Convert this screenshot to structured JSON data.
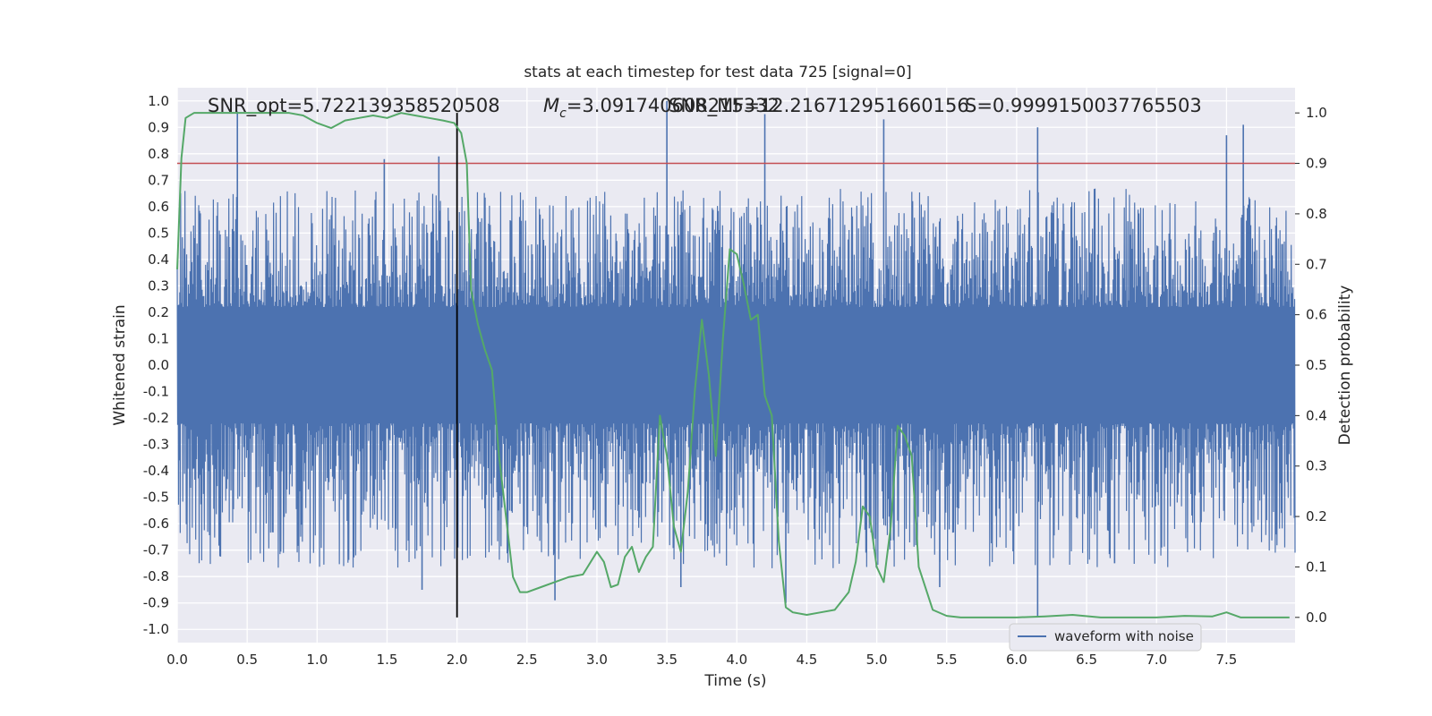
{
  "chart_data": {
    "type": "line",
    "title": "stats at each timestep for test data 725 [signal=0]",
    "xlabel": "Time (s)",
    "ylabel_left": "Whitened strain",
    "ylabel_right": "Detection probability",
    "xlim": [
      0.0,
      7.99
    ],
    "ylim_left": [
      -1.05,
      1.05
    ],
    "ylim_right": [
      -0.05,
      1.05
    ],
    "x_ticks": [
      "0.0",
      "0.5",
      "1.0",
      "1.5",
      "2.0",
      "2.5",
      "3.0",
      "3.5",
      "4.0",
      "4.5",
      "5.0",
      "5.5",
      "6.0",
      "6.5",
      "7.0",
      "7.5"
    ],
    "y_ticks_left": [
      "1.0",
      "0.9",
      "0.8",
      "0.7",
      "0.6",
      "0.5",
      "0.4",
      "0.3",
      "0.2",
      "0.1",
      "0.0",
      "-0.1",
      "-0.2",
      "-0.3",
      "-0.4",
      "-0.5",
      "-0.6",
      "-0.7",
      "-0.8",
      "-0.9",
      "-1.0"
    ],
    "y_ticks_right": [
      "1.0",
      "0.9",
      "0.8",
      "0.7",
      "0.6",
      "0.5",
      "0.4",
      "0.3",
      "0.2",
      "0.1",
      "0.0"
    ],
    "grid": true,
    "legend_location": "lower-right",
    "annotations": [
      "SNR_opt=5.722139358520508",
      "=3.091740608215332",
      "SNR_MF=12.216712951660156",
      "S=0.9999150037765503"
    ],
    "annotation_mc_symbol": "M",
    "annotation_mc_subscript": "c",
    "threshold": {
      "value": 0.9,
      "axis": "right",
      "color": "#c44e52"
    },
    "vertical_marker": {
      "x": 2.0,
      "color": "#000000"
    },
    "series": [
      {
        "name": "waveform with noise",
        "color": "#4c72b0",
        "axis": "left",
        "description_type": "noise",
        "envelope": {
          "typical_max": 0.45,
          "typical_min": -0.55
        },
        "spikes": [
          {
            "x": 0.43,
            "y": 0.96
          },
          {
            "x": 1.48,
            "y": 0.78
          },
          {
            "x": 1.87,
            "y": 0.79
          },
          {
            "x": 3.5,
            "y": 1.0
          },
          {
            "x": 4.2,
            "y": 0.95
          },
          {
            "x": 5.05,
            "y": 0.93
          },
          {
            "x": 6.15,
            "y": 0.9
          },
          {
            "x": 7.62,
            "y": 0.91
          },
          {
            "x": 7.5,
            "y": 0.87
          },
          {
            "x": 1.75,
            "y": -0.85
          },
          {
            "x": 2.7,
            "y": -0.89
          },
          {
            "x": 3.6,
            "y": -0.84
          },
          {
            "x": 4.35,
            "y": -0.9
          },
          {
            "x": 6.15,
            "y": -0.95
          },
          {
            "x": 6.7,
            "y": -0.75
          },
          {
            "x": 5.45,
            "y": -0.84
          }
        ]
      },
      {
        "name": "detection probability",
        "color": "#55a868",
        "axis": "right",
        "x": [
          0.0,
          0.03,
          0.06,
          0.12,
          0.2,
          0.4,
          0.6,
          0.8,
          0.9,
          1.0,
          1.1,
          1.2,
          1.3,
          1.4,
          1.5,
          1.6,
          1.7,
          1.8,
          1.9,
          1.98,
          2.03,
          2.07,
          2.1,
          2.15,
          2.2,
          2.25,
          2.3,
          2.35,
          2.4,
          2.45,
          2.5,
          2.6,
          2.7,
          2.8,
          2.9,
          3.0,
          3.05,
          3.1,
          3.15,
          3.2,
          3.25,
          3.3,
          3.35,
          3.4,
          3.45,
          3.5,
          3.55,
          3.6,
          3.65,
          3.7,
          3.75,
          3.8,
          3.85,
          3.9,
          3.95,
          4.0,
          4.05,
          4.1,
          4.15,
          4.2,
          4.25,
          4.3,
          4.35,
          4.4,
          4.5,
          4.6,
          4.7,
          4.8,
          4.85,
          4.9,
          4.95,
          5.0,
          5.05,
          5.1,
          5.15,
          5.2,
          5.25,
          5.3,
          5.4,
          5.5,
          5.6,
          5.8,
          6.0,
          6.2,
          6.4,
          6.6,
          6.8,
          7.0,
          7.2,
          7.4,
          7.5,
          7.6,
          7.95
        ],
        "y": [
          0.69,
          0.91,
          0.99,
          1.0,
          1.0,
          1.0,
          1.0,
          1.0,
          0.995,
          0.98,
          0.97,
          0.985,
          0.99,
          0.995,
          0.99,
          1.0,
          0.995,
          0.99,
          0.985,
          0.98,
          0.96,
          0.9,
          0.65,
          0.58,
          0.53,
          0.49,
          0.32,
          0.2,
          0.08,
          0.05,
          0.05,
          0.06,
          0.07,
          0.08,
          0.085,
          0.13,
          0.11,
          0.06,
          0.065,
          0.12,
          0.14,
          0.09,
          0.12,
          0.14,
          0.4,
          0.32,
          0.18,
          0.13,
          0.25,
          0.45,
          0.59,
          0.48,
          0.32,
          0.55,
          0.73,
          0.72,
          0.66,
          0.59,
          0.6,
          0.44,
          0.4,
          0.15,
          0.02,
          0.01,
          0.005,
          0.01,
          0.015,
          0.05,
          0.11,
          0.22,
          0.2,
          0.1,
          0.07,
          0.18,
          0.38,
          0.36,
          0.32,
          0.1,
          0.015,
          0.003,
          0.0,
          0.0,
          0.0,
          0.002,
          0.005,
          0.0,
          0.0,
          0.0,
          0.003,
          0.002,
          0.01,
          0.0,
          0.0
        ]
      }
    ]
  }
}
